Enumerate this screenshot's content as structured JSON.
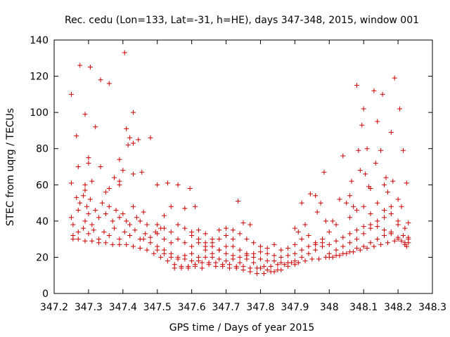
{
  "chart_data": {
    "type": "scatter",
    "title": "Rec. cedu (Lon=133, Lat=-31, h=HE), days 347-348, 2015, window 001",
    "xlabel": "GPS time / Days of year 2015",
    "ylabel": "STEC from uqrg / TECUs",
    "xlim": [
      347.2,
      348.3
    ],
    "ylim": [
      0,
      140
    ],
    "xticks": [
      347.2,
      347.3,
      347.4,
      347.5,
      347.6,
      347.7,
      347.8,
      347.9,
      348.0,
      348.1,
      348.2,
      348.3
    ],
    "xtick_labels": [
      "347.2",
      "347.3",
      "347.4",
      "347.5",
      "347.6",
      "347.7",
      "347.8",
      "347.9",
      "348",
      "348.1",
      "348.2",
      "348.3"
    ],
    "yticks": [
      0,
      20,
      40,
      60,
      80,
      100,
      120,
      140
    ],
    "ytick_labels": [
      "0",
      "20",
      "40",
      "60",
      "80",
      "100",
      "120",
      "140"
    ],
    "marker": "+",
    "color": "#cc0000",
    "grid": false,
    "legend": "none",
    "points": [
      [
        347.25,
        110
      ],
      [
        347.265,
        87
      ],
      [
        347.275,
        126
      ],
      [
        347.29,
        99
      ],
      [
        347.305,
        125
      ],
      [
        347.32,
        92
      ],
      [
        347.335,
        118
      ],
      [
        347.36,
        116
      ],
      [
        347.405,
        133
      ],
      [
        347.41,
        91
      ],
      [
        347.42,
        86
      ],
      [
        347.43,
        100
      ],
      [
        347.415,
        82
      ],
      [
        347.43,
        83
      ],
      [
        347.445,
        85
      ],
      [
        347.48,
        86
      ],
      [
        347.27,
        70
      ],
      [
        347.3,
        75
      ],
      [
        347.3,
        72
      ],
      [
        347.335,
        70
      ],
      [
        347.29,
        60
      ],
      [
        347.29,
        57
      ],
      [
        347.31,
        62
      ],
      [
        347.35,
        56
      ],
      [
        347.36,
        58
      ],
      [
        347.375,
        64
      ],
      [
        347.39,
        74
      ],
      [
        347.39,
        62
      ],
      [
        347.39,
        60
      ],
      [
        347.4,
        68
      ],
      [
        347.43,
        66
      ],
      [
        347.455,
        67
      ],
      [
        347.25,
        61
      ],
      [
        347.25,
        42
      ],
      [
        347.255,
        38
      ],
      [
        347.265,
        53
      ],
      [
        347.27,
        46
      ],
      [
        347.275,
        50
      ],
      [
        347.285,
        54
      ],
      [
        347.29,
        40
      ],
      [
        347.295,
        48
      ],
      [
        347.3,
        44
      ],
      [
        347.305,
        52
      ],
      [
        347.31,
        38
      ],
      [
        347.32,
        46
      ],
      [
        347.33,
        42
      ],
      [
        347.34,
        50
      ],
      [
        347.35,
        44
      ],
      [
        347.36,
        48
      ],
      [
        347.37,
        40
      ],
      [
        347.38,
        46
      ],
      [
        347.39,
        42
      ],
      [
        347.4,
        44
      ],
      [
        347.41,
        40
      ],
      [
        347.42,
        38
      ],
      [
        347.43,
        48
      ],
      [
        347.44,
        42
      ],
      [
        347.45,
        40
      ],
      [
        347.46,
        45
      ],
      [
        347.47,
        38
      ],
      [
        347.255,
        32
      ],
      [
        347.27,
        34
      ],
      [
        347.285,
        36
      ],
      [
        347.3,
        33
      ],
      [
        347.315,
        35
      ],
      [
        347.33,
        30
      ],
      [
        347.345,
        34
      ],
      [
        347.36,
        32
      ],
      [
        347.375,
        36
      ],
      [
        347.39,
        30
      ],
      [
        347.405,
        34
      ],
      [
        347.42,
        32
      ],
      [
        347.435,
        35
      ],
      [
        347.45,
        30
      ],
      [
        347.465,
        33
      ],
      [
        347.48,
        31
      ],
      [
        347.495,
        34
      ],
      [
        347.51,
        36
      ],
      [
        347.255,
        30
      ],
      [
        347.27,
        30
      ],
      [
        347.29,
        29
      ],
      [
        347.31,
        29
      ],
      [
        347.33,
        28
      ],
      [
        347.35,
        28
      ],
      [
        347.37,
        27
      ],
      [
        347.39,
        27
      ],
      [
        347.41,
        27
      ],
      [
        347.43,
        26
      ],
      [
        347.45,
        25
      ],
      [
        347.47,
        24
      ],
      [
        347.49,
        22
      ],
      [
        347.51,
        20
      ],
      [
        347.53,
        18
      ],
      [
        347.55,
        16
      ],
      [
        347.57,
        15
      ],
      [
        347.59,
        15
      ],
      [
        347.61,
        16
      ],
      [
        347.63,
        17
      ],
      [
        347.65,
        17
      ],
      [
        347.67,
        17
      ],
      [
        347.69,
        16
      ],
      [
        347.71,
        16
      ],
      [
        347.73,
        15
      ],
      [
        347.75,
        15
      ],
      [
        347.77,
        14
      ],
      [
        347.79,
        14
      ],
      [
        347.81,
        15
      ],
      [
        347.83,
        15
      ],
      [
        347.85,
        16
      ],
      [
        347.87,
        16
      ],
      [
        347.89,
        17
      ],
      [
        347.91,
        17
      ],
      [
        347.93,
        18
      ],
      [
        347.95,
        19
      ],
      [
        347.97,
        19
      ],
      [
        347.99,
        20
      ],
      [
        348.01,
        20
      ],
      [
        348.03,
        21
      ],
      [
        348.05,
        22
      ],
      [
        348.07,
        23
      ],
      [
        348.09,
        24
      ],
      [
        348.11,
        25
      ],
      [
        348.13,
        26
      ],
      [
        348.15,
        27
      ],
      [
        348.17,
        28
      ],
      [
        348.19,
        29
      ],
      [
        348.21,
        29
      ],
      [
        348.23,
        30
      ],
      [
        347.46,
        30
      ],
      [
        347.48,
        28
      ],
      [
        347.5,
        26
      ],
      [
        347.52,
        24
      ],
      [
        347.54,
        22
      ],
      [
        347.56,
        20
      ],
      [
        347.58,
        19
      ],
      [
        347.6,
        18
      ],
      [
        347.62,
        18
      ],
      [
        347.64,
        20
      ],
      [
        347.66,
        22
      ],
      [
        347.68,
        24
      ],
      [
        347.7,
        26
      ],
      [
        347.72,
        26
      ],
      [
        347.74,
        24
      ],
      [
        347.76,
        22
      ],
      [
        347.78,
        20
      ],
      [
        347.8,
        19
      ],
      [
        347.82,
        18
      ],
      [
        347.84,
        18
      ],
      [
        347.86,
        17
      ],
      [
        347.88,
        17
      ],
      [
        347.9,
        18
      ],
      [
        347.92,
        20
      ],
      [
        347.94,
        22
      ],
      [
        347.96,
        24
      ],
      [
        347.98,
        26
      ],
      [
        348.0,
        27
      ],
      [
        348.02,
        29
      ],
      [
        348.04,
        31
      ],
      [
        348.06,
        33
      ],
      [
        348.08,
        35
      ],
      [
        348.1,
        37
      ],
      [
        348.12,
        38
      ],
      [
        348.14,
        37
      ],
      [
        348.16,
        35
      ],
      [
        348.18,
        33
      ],
      [
        348.2,
        31
      ],
      [
        348.22,
        28
      ],
      [
        347.5,
        60
      ],
      [
        347.52,
        43
      ],
      [
        347.53,
        61
      ],
      [
        347.54,
        48
      ],
      [
        347.56,
        60
      ],
      [
        347.58,
        47
      ],
      [
        347.595,
        58
      ],
      [
        347.61,
        48
      ],
      [
        347.5,
        38
      ],
      [
        347.52,
        36
      ],
      [
        347.54,
        34
      ],
      [
        347.56,
        38
      ],
      [
        347.58,
        36
      ],
      [
        347.6,
        34
      ],
      [
        347.62,
        35
      ],
      [
        347.64,
        33
      ],
      [
        347.66,
        30
      ],
      [
        347.68,
        35
      ],
      [
        347.7,
        36
      ],
      [
        347.72,
        35
      ],
      [
        347.735,
        51
      ],
      [
        347.75,
        39
      ],
      [
        347.77,
        38
      ],
      [
        347.5,
        33
      ],
      [
        347.52,
        30
      ],
      [
        347.54,
        28
      ],
      [
        347.56,
        30
      ],
      [
        347.58,
        28
      ],
      [
        347.6,
        26
      ],
      [
        347.62,
        28
      ],
      [
        347.64,
        26
      ],
      [
        347.66,
        28
      ],
      [
        347.68,
        30
      ],
      [
        347.7,
        32
      ],
      [
        347.72,
        30
      ],
      [
        347.74,
        33
      ],
      [
        347.76,
        30
      ],
      [
        347.78,
        28
      ],
      [
        347.8,
        26
      ],
      [
        347.82,
        25
      ],
      [
        347.84,
        27
      ],
      [
        347.86,
        24
      ],
      [
        347.88,
        25
      ],
      [
        347.9,
        27
      ],
      [
        347.5,
        24
      ],
      [
        347.52,
        22
      ],
      [
        347.54,
        20
      ],
      [
        347.56,
        19
      ],
      [
        347.58,
        21
      ],
      [
        347.6,
        22
      ],
      [
        347.62,
        20
      ],
      [
        347.64,
        24
      ],
      [
        347.66,
        20
      ],
      [
        347.68,
        19
      ],
      [
        347.7,
        18
      ],
      [
        347.72,
        19
      ],
      [
        347.74,
        17
      ],
      [
        347.76,
        19
      ],
      [
        347.78,
        17
      ],
      [
        347.8,
        14
      ],
      [
        347.82,
        13
      ],
      [
        347.84,
        12
      ],
      [
        347.86,
        13
      ],
      [
        347.88,
        15
      ],
      [
        347.9,
        16
      ],
      [
        347.55,
        14
      ],
      [
        347.57,
        14
      ],
      [
        347.59,
        14
      ],
      [
        347.61,
        15
      ],
      [
        347.63,
        14
      ],
      [
        347.65,
        16
      ],
      [
        347.67,
        15
      ],
      [
        347.69,
        15
      ],
      [
        347.71,
        14
      ],
      [
        347.73,
        14
      ],
      [
        347.75,
        13
      ],
      [
        347.77,
        12
      ],
      [
        347.79,
        11
      ],
      [
        347.81,
        11
      ],
      [
        347.83,
        12
      ],
      [
        347.85,
        13
      ],
      [
        347.9,
        36
      ],
      [
        347.91,
        34
      ],
      [
        347.92,
        50
      ],
      [
        347.93,
        38
      ],
      [
        347.945,
        55
      ],
      [
        347.96,
        54
      ],
      [
        347.965,
        45
      ],
      [
        347.975,
        50
      ],
      [
        347.985,
        67
      ],
      [
        347.99,
        40
      ],
      [
        347.92,
        30
      ],
      [
        347.94,
        32
      ],
      [
        347.96,
        28
      ],
      [
        347.98,
        30
      ],
      [
        348.0,
        34
      ],
      [
        348.01,
        40
      ],
      [
        348.02,
        38
      ],
      [
        348.03,
        52
      ],
      [
        348.04,
        76
      ],
      [
        348.05,
        50
      ],
      [
        348.06,
        54
      ],
      [
        348.065,
        62
      ],
      [
        348.07,
        48
      ],
      [
        348.08,
        115
      ],
      [
        348.085,
        79
      ],
      [
        348.09,
        68
      ],
      [
        348.1,
        102
      ],
      [
        348.095,
        93
      ],
      [
        348.105,
        66
      ],
      [
        348.11,
        80
      ],
      [
        348.115,
        59
      ],
      [
        348.12,
        58
      ],
      [
        348.13,
        112
      ],
      [
        348.135,
        72
      ],
      [
        348.14,
        95
      ],
      [
        348.15,
        79
      ],
      [
        348.155,
        110
      ],
      [
        348.16,
        60
      ],
      [
        348.165,
        64
      ],
      [
        348.17,
        56
      ],
      [
        348.18,
        89
      ],
      [
        348.185,
        62
      ],
      [
        348.19,
        119
      ],
      [
        348.2,
        52
      ],
      [
        348.205,
        102
      ],
      [
        348.21,
        48
      ],
      [
        348.215,
        79
      ],
      [
        348.225,
        61
      ],
      [
        348.23,
        39
      ],
      [
        348.0,
        22
      ],
      [
        348.02,
        24
      ],
      [
        348.04,
        26
      ],
      [
        348.06,
        28
      ],
      [
        348.08,
        30
      ],
      [
        348.1,
        33
      ],
      [
        348.12,
        36
      ],
      [
        348.14,
        40
      ],
      [
        348.16,
        42
      ],
      [
        348.18,
        44
      ],
      [
        348.2,
        40
      ],
      [
        348.22,
        36
      ],
      [
        348.06,
        42
      ],
      [
        348.08,
        46
      ],
      [
        348.1,
        48
      ],
      [
        348.12,
        44
      ],
      [
        348.14,
        50
      ],
      [
        348.16,
        46
      ],
      [
        348.18,
        48
      ],
      [
        348.2,
        38
      ],
      [
        348.215,
        32
      ],
      [
        348.23,
        28
      ],
      [
        348.225,
        26
      ],
      [
        348.23,
        31
      ],
      [
        348.0,
        20
      ],
      [
        348.02,
        21
      ],
      [
        348.04,
        22
      ],
      [
        348.06,
        23
      ],
      [
        348.08,
        25
      ],
      [
        348.1,
        26
      ],
      [
        348.12,
        28
      ],
      [
        348.14,
        30
      ],
      [
        348.16,
        32
      ],
      [
        348.18,
        34
      ],
      [
        348.2,
        30
      ],
      [
        348.22,
        27
      ],
      [
        347.6,
        32
      ],
      [
        347.62,
        30
      ],
      [
        347.64,
        28
      ],
      [
        347.66,
        26
      ],
      [
        347.68,
        24
      ],
      [
        347.7,
        22
      ],
      [
        347.72,
        21
      ],
      [
        347.74,
        20
      ],
      [
        347.76,
        21
      ],
      [
        347.78,
        22
      ],
      [
        347.8,
        23
      ],
      [
        347.82,
        22
      ],
      [
        347.84,
        21
      ],
      [
        347.86,
        20
      ],
      [
        347.88,
        21
      ],
      [
        347.9,
        22
      ],
      [
        347.92,
        24
      ],
      [
        347.94,
        26
      ],
      [
        347.96,
        27
      ],
      [
        347.98,
        28
      ]
    ]
  }
}
